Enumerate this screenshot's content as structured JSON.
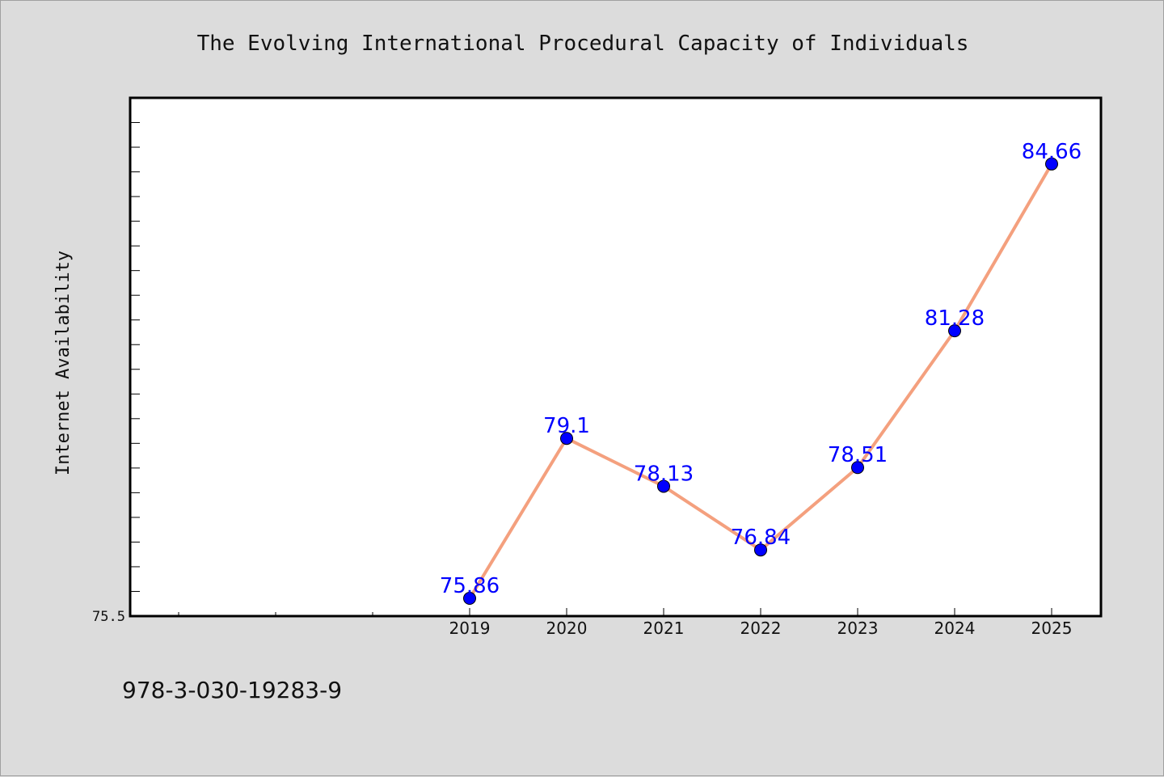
{
  "chart_data": {
    "type": "line",
    "title": "The Evolving International Procedural Capacity of Individuals",
    "xlabel": "",
    "ylabel": "Internet Availability",
    "x": [
      "2019",
      "2020",
      "2021",
      "2022",
      "2023",
      "2024",
      "2025"
    ],
    "series": [
      {
        "values": [
          75.86,
          79.1,
          78.13,
          76.84,
          78.51,
          81.28,
          84.66
        ]
      }
    ],
    "ylim": [
      75.5,
      86.0
    ],
    "y_tick_labels": [
      "75.5"
    ],
    "grid": false,
    "colors": {
      "line": "#f4a07e",
      "marker": "#0000ff",
      "label": "#0000ff"
    }
  },
  "footer": {
    "isbn": "978-3-030-19283-9"
  }
}
